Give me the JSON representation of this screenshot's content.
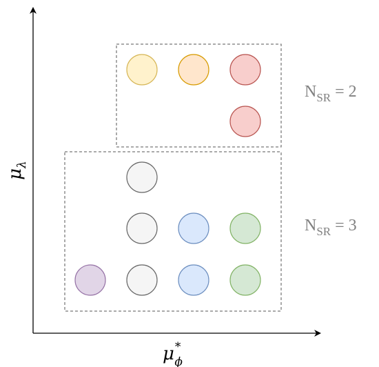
{
  "axes": {
    "x_label": {
      "base": "μ",
      "sup": "*",
      "sub": "ϕ"
    },
    "y_label": {
      "base": "μ",
      "sub": "λ"
    }
  },
  "groups": [
    {
      "label": {
        "base": "N",
        "sub": "SR",
        "rest": " = 2"
      },
      "circles": [
        {
          "fill": "#fff2cc",
          "stroke": "#d6b656"
        },
        {
          "fill": "#ffe6cc",
          "stroke": "#d79b00"
        },
        {
          "fill": "#f8cecc",
          "stroke": "#b85450"
        },
        {
          "fill": "#f8cecc",
          "stroke": "#b85450"
        }
      ]
    },
    {
      "label": {
        "base": "N",
        "sub": "SR",
        "rest": " = 3"
      },
      "circles": [
        {
          "fill": "#f5f5f5",
          "stroke": "#666666"
        },
        {
          "fill": "#f5f5f5",
          "stroke": "#666666"
        },
        {
          "fill": "#dae8fc",
          "stroke": "#6c8ebf"
        },
        {
          "fill": "#d5e8d4",
          "stroke": "#82b366"
        },
        {
          "fill": "#e1d5e7",
          "stroke": "#9673a6"
        },
        {
          "fill": "#f5f5f5",
          "stroke": "#666666"
        },
        {
          "fill": "#dae8fc",
          "stroke": "#6c8ebf"
        },
        {
          "fill": "#d5e8d4",
          "stroke": "#82b366"
        }
      ]
    }
  ]
}
